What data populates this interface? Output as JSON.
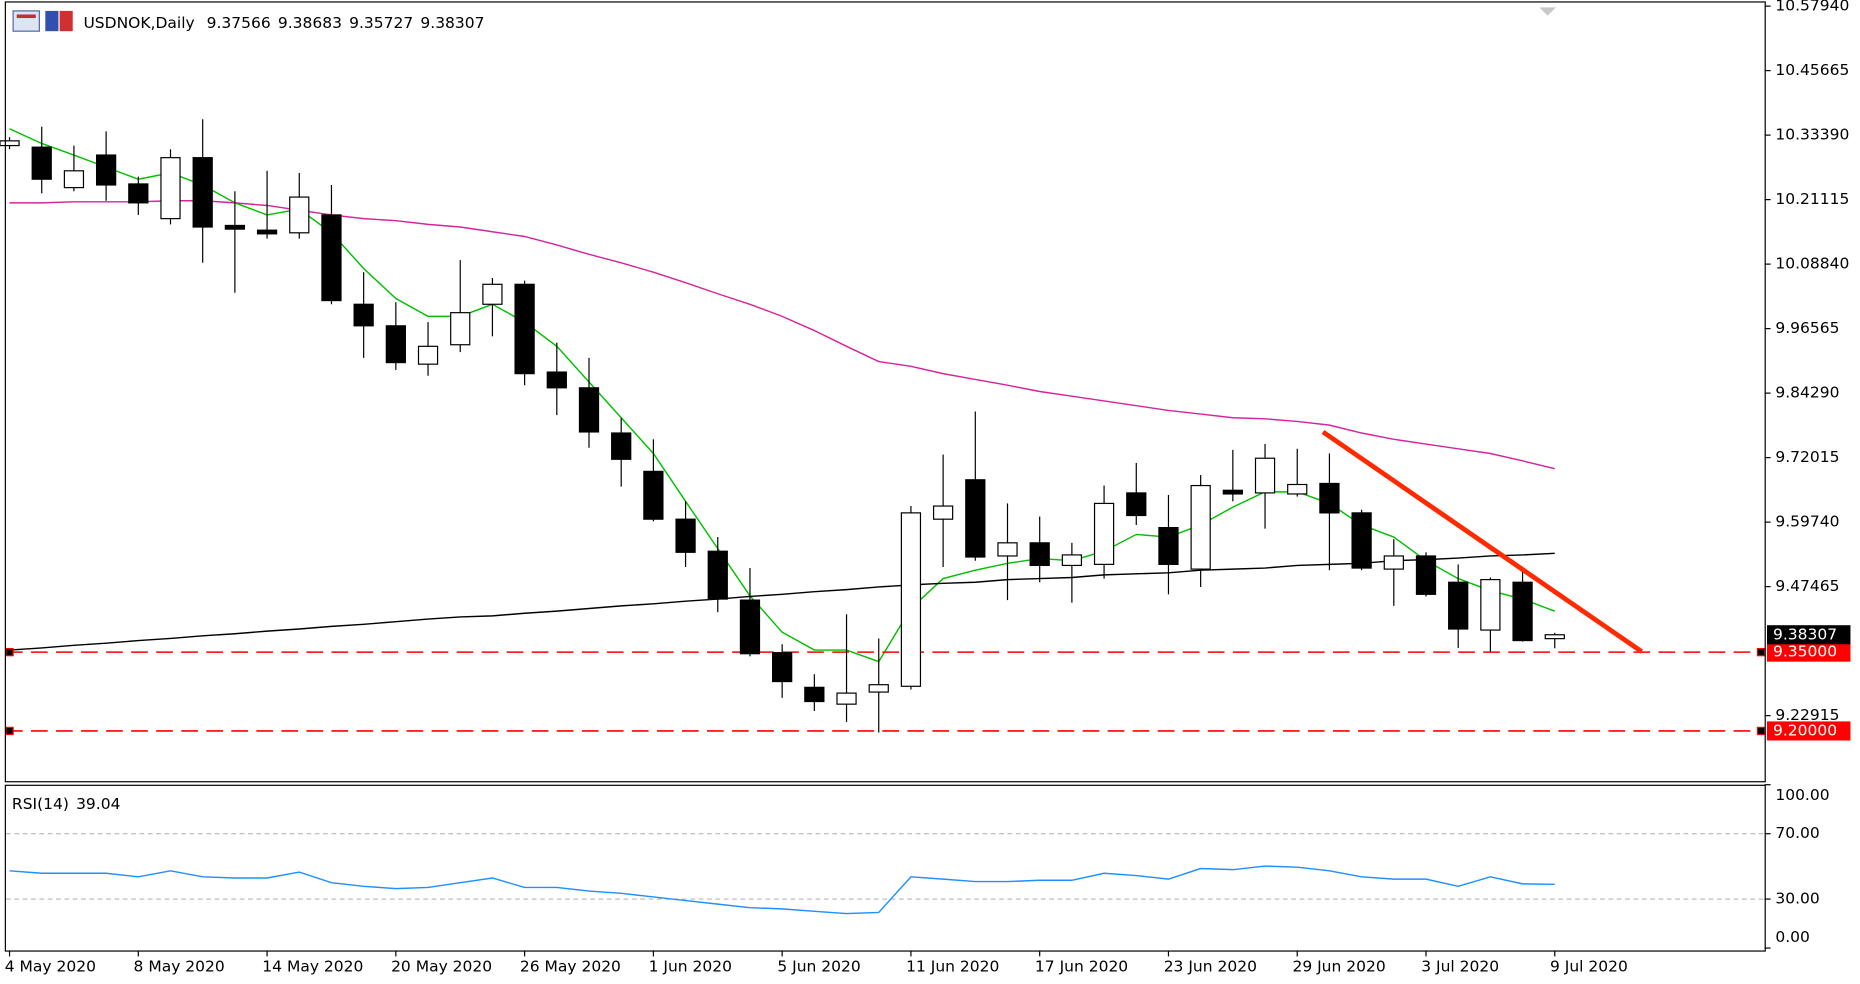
{
  "chart_data": [
    {
      "type": "candlestick",
      "title": "USDNOK,Daily",
      "categories": [
        "4 May 2020",
        null,
        null,
        null,
        "8 May 2020",
        null,
        null,
        null,
        "14 May 2020",
        null,
        null,
        null,
        "20 May 2020",
        null,
        null,
        null,
        "26 May 2020",
        null,
        null,
        null,
        "1 Jun 2020",
        null,
        null,
        null,
        "5 Jun 2020",
        null,
        null,
        null,
        "11 Jun 2020",
        null,
        null,
        null,
        "17 Jun 2020",
        null,
        null,
        null,
        "23 Jun 2020",
        null,
        null,
        null,
        "29 Jun 2020",
        null,
        null,
        null,
        "3 Jul 2020",
        null,
        null,
        null,
        "9 Jul 2020"
      ],
      "open": [
        10.314,
        10.311,
        10.234,
        10.296,
        10.241,
        10.175,
        10.291,
        10.162,
        10.153,
        10.148,
        10.182,
        10.012,
        9.971,
        9.898,
        9.935,
        10.012,
        10.05,
        9.883,
        9.853,
        9.767,
        9.694,
        9.603,
        9.542,
        9.449,
        9.349,
        9.283,
        9.251,
        9.274,
        9.285,
        9.603,
        9.678,
        9.533,
        9.558,
        9.515,
        9.517,
        9.653,
        9.587,
        9.508,
        9.658,
        9.653,
        9.651,
        9.671,
        9.615,
        9.508,
        9.533,
        9.483,
        9.392,
        9.483,
        9.37566
      ],
      "high": [
        10.33,
        10.35,
        10.314,
        10.341,
        10.255,
        10.307,
        10.364,
        10.227,
        10.266,
        10.262,
        10.239,
        10.073,
        10.016,
        9.978,
        10.096,
        10.062,
        10.057,
        9.939,
        9.91,
        9.796,
        9.755,
        9.637,
        9.569,
        9.51,
        9.365,
        9.308,
        9.422,
        9.376,
        9.628,
        9.726,
        9.808,
        9.633,
        9.608,
        9.558,
        9.667,
        9.71,
        9.649,
        9.687,
        9.735,
        9.746,
        9.737,
        9.728,
        9.621,
        9.565,
        9.54,
        9.517,
        9.492,
        9.506,
        9.38683
      ],
      "low": [
        10.307,
        10.223,
        10.227,
        10.209,
        10.182,
        10.164,
        10.091,
        10.034,
        10.137,
        10.137,
        10.012,
        9.91,
        9.887,
        9.876,
        9.921,
        9.951,
        9.858,
        9.801,
        9.739,
        9.665,
        9.599,
        9.512,
        9.426,
        9.342,
        9.263,
        9.238,
        9.217,
        9.197,
        9.279,
        9.512,
        9.524,
        9.449,
        9.483,
        9.444,
        9.49,
        9.592,
        9.46,
        9.474,
        9.637,
        9.585,
        9.646,
        9.506,
        9.506,
        9.438,
        9.456,
        9.358,
        9.351,
        9.37,
        9.35727
      ],
      "close": [
        10.323,
        10.25,
        10.266,
        10.239,
        10.205,
        10.291,
        10.159,
        10.155,
        10.146,
        10.216,
        10.019,
        9.971,
        9.901,
        9.932,
        9.996,
        10.05,
        9.88,
        9.853,
        9.769,
        9.717,
        9.603,
        9.54,
        9.451,
        9.347,
        9.294,
        9.256,
        9.272,
        9.288,
        9.615,
        9.628,
        9.531,
        9.558,
        9.515,
        9.535,
        9.633,
        9.61,
        9.517,
        9.667,
        9.651,
        9.719,
        9.669,
        9.615,
        9.51,
        9.533,
        9.46,
        9.394,
        9.488,
        9.372,
        9.38307
      ],
      "series": [
        {
          "color": "#00c000",
          "values": [
            10.346,
            10.318,
            10.296,
            10.273,
            10.25,
            10.262,
            10.239,
            10.205,
            10.182,
            10.193,
            10.148,
            10.08,
            10.023,
            9.989,
            9.989,
            10.012,
            9.978,
            9.932,
            9.864,
            9.796,
            9.728,
            9.637,
            9.547,
            9.457,
            9.388,
            9.354,
            9.354,
            9.332,
            9.433,
            9.49,
            9.506,
            9.519,
            9.528,
            9.524,
            9.542,
            9.574,
            9.569,
            9.592,
            9.626,
            9.655,
            9.655,
            9.633,
            9.592,
            9.569,
            9.524,
            9.49,
            9.467,
            9.451,
            9.428
          ]
        },
        {
          "color": "#d6249c",
          "values": [
            10.205,
            10.205,
            10.207,
            10.207,
            10.207,
            10.209,
            10.209,
            10.205,
            10.2,
            10.191,
            10.182,
            10.175,
            10.171,
            10.164,
            10.159,
            10.15,
            10.141,
            10.125,
            10.107,
            10.091,
            10.073,
            10.053,
            10.032,
            10.012,
            9.989,
            9.962,
            9.932,
            9.903,
            9.894,
            9.88,
            9.869,
            9.858,
            9.846,
            9.837,
            9.828,
            9.819,
            9.81,
            9.803,
            9.796,
            9.794,
            9.789,
            9.782,
            9.767,
            9.755,
            9.746,
            9.737,
            9.728,
            9.714,
            9.699
          ]
        },
        {
          "color": "#000000",
          "values": [
            9.354,
            9.358,
            9.363,
            9.367,
            9.372,
            9.376,
            9.381,
            9.385,
            9.39,
            9.394,
            9.399,
            9.403,
            9.408,
            9.413,
            9.417,
            9.419,
            9.424,
            9.428,
            9.433,
            9.438,
            9.442,
            9.447,
            9.451,
            9.456,
            9.46,
            9.465,
            9.469,
            9.474,
            9.478,
            9.481,
            9.483,
            9.488,
            9.49,
            9.492,
            9.497,
            9.499,
            9.501,
            9.506,
            9.508,
            9.51,
            9.515,
            9.517,
            9.519,
            9.524,
            9.526,
            9.529,
            9.533,
            9.535,
            9.538
          ]
        }
      ],
      "ylim": [
        9.1045,
        10.5839
      ],
      "yticks": [
        {
          "value": 10.5794,
          "label": "10.57940"
        },
        10.45665,
        {
          "value": 10.3339,
          "label": "10.33390"
        },
        10.21115,
        {
          "value": 10.0884,
          "label": "10.08840"
        },
        9.96565,
        {
          "value": 9.8429,
          "label": "9.84290"
        },
        9.72015,
        {
          "value": 9.5974,
          "label": "9.59740"
        },
        9.47465,
        9.22915
      ],
      "hlines": [
        {
          "value": 9.35,
          "label": "9.35000"
        },
        {
          "value": 9.2,
          "label": "9.20000"
        }
      ],
      "hline_color": "#ff0000",
      "trendline": {
        "x": [
          40.8,
          50.7
        ],
        "values": [
          9.769,
          9.351
        ],
        "color": "#ff2a00"
      },
      "bull_color": "#ffffff",
      "bear_color": "#000000"
    },
    {
      "type": "line",
      "title": "RSI(14)",
      "values": [
        47.3,
        45.8,
        45.8,
        45.8,
        43.6,
        47.3,
        43.6,
        42.9,
        42.9,
        46.5,
        40.0,
        37.8,
        36.4,
        37.1,
        40.0,
        42.9,
        37.1,
        37.1,
        34.9,
        33.5,
        31.3,
        29.1,
        26.9,
        24.7,
        24.0,
        22.5,
        21.1,
        21.8,
        43.6,
        42.2,
        40.7,
        40.7,
        41.5,
        41.5,
        45.8,
        44.4,
        42.2,
        48.7,
        48.0,
        50.2,
        49.5,
        47.3,
        43.6,
        42.2,
        42.2,
        37.8,
        43.6,
        39.3,
        39.04
      ],
      "color": "#1e90ff",
      "ylim": [
        0,
        100
      ],
      "yticks": [
        {
          "value": 100,
          "label": "100.00"
        },
        {
          "value": 70,
          "label": "70.00"
        },
        {
          "value": 30,
          "label": "30.00"
        },
        {
          "value": 0,
          "label": "0.00"
        }
      ]
    }
  ]
}
